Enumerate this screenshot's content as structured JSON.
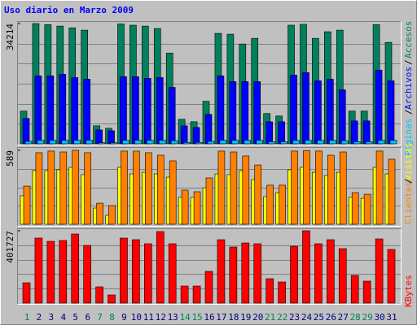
{
  "title": "Uso diario en Marzo 2009",
  "legend_separator": "/",
  "chart_data": [
    {
      "type": "bar",
      "ylim": [
        0,
        34214
      ],
      "yticks": [
        34214
      ],
      "series": [
        {
          "name": "Accesos",
          "color": "#00805c",
          "values": [
            9310,
            34214,
            33900,
            33500,
            33000,
            32350,
            5120,
            4420,
            34100,
            33750,
            33500,
            32800,
            25830,
            6980,
            6280,
            12100,
            31420,
            31190,
            28400,
            30020,
            8610,
            7910,
            33750,
            34000,
            30020,
            31890,
            32350,
            9310,
            9310,
            33900,
            28860
          ]
        },
        {
          "name": "Archivos",
          "color": "#0000ff",
          "values": [
            7215,
            19320,
            19320,
            19780,
            18850,
            18390,
            3960,
            3720,
            19090,
            19090,
            18620,
            18850,
            16060,
            5120,
            4650,
            8380,
            19320,
            17690,
            17690,
            17690,
            6280,
            6280,
            19550,
            20250,
            17920,
            18390,
            15360,
            6520,
            6520,
            20950,
            17920
          ]
        },
        {
          "name": "Páginas",
          "color": "#00c0ff",
          "values": [
            700,
            1000,
            1000,
            1000,
            1000,
            1000,
            300,
            300,
            1000,
            1000,
            1000,
            1000,
            900,
            400,
            400,
            700,
            1000,
            1000,
            1000,
            1000,
            600,
            600,
            1000,
            1000,
            1000,
            1000,
            900,
            600,
            600,
            1000,
            1000
          ]
        }
      ]
    },
    {
      "type": "bar",
      "ylim": [
        0,
        589
      ],
      "yticks": [
        589
      ],
      "series": [
        {
          "name": "Visitas",
          "color": "#ffff00",
          "values": [
            227,
            427,
            427,
            434,
            453,
            395,
            129,
            71,
            453,
            401,
            414,
            401,
            375,
            214,
            214,
            291,
            401,
            395,
            427,
            356,
            220,
            252,
            434,
            453,
            414,
            388,
            414,
            214,
            207,
            453,
            401
          ]
        },
        {
          "name": "Clientes",
          "color": "#ff8000",
          "values": [
            304,
            570,
            583,
            576,
            589,
            570,
            168,
            149,
            583,
            583,
            570,
            550,
            505,
            272,
            259,
            369,
            583,
            576,
            544,
            472,
            311,
            311,
            583,
            586,
            583,
            550,
            576,
            252,
            239,
            583,
            518
          ]
        }
      ]
    },
    {
      "type": "bar",
      "ylim": [
        0,
        401727
      ],
      "yticks": [
        401727
      ],
      "series": [
        {
          "name": "KBytes",
          "color": "#ff0000",
          "values": [
            112845,
            361100,
            343050,
            347560,
            383670,
            320480,
            90270,
            45140,
            361100,
            352080,
            329510,
            397210,
            329510,
            94790,
            94790,
            176040,
            352080,
            311450,
            334020,
            329510,
            135410,
            117360,
            315960,
            401727,
            329510,
            352080,
            302420,
            153470,
            121870,
            356590,
            297910
          ]
        }
      ],
      "categories": [
        "1",
        "2",
        "3",
        "4",
        "5",
        "6",
        "7",
        "8",
        "9",
        "10",
        "11",
        "12",
        "13",
        "14",
        "15",
        "16",
        "17",
        "18",
        "19",
        "20",
        "21",
        "22",
        "23",
        "24",
        "25",
        "26",
        "27",
        "28",
        "29",
        "30",
        "31"
      ],
      "label_colors": [
        "#00805c",
        "#000080",
        "#000080",
        "#000080",
        "#000080",
        "#000080",
        "#00805c",
        "#00805c",
        "#000080",
        "#000080",
        "#000080",
        "#000080",
        "#000080",
        "#00805c",
        "#00805c",
        "#000080",
        "#000080",
        "#000080",
        "#000080",
        "#000080",
        "#00805c",
        "#00805c",
        "#000080",
        "#000080",
        "#000080",
        "#000080",
        "#000080",
        "#00805c",
        "#00805c",
        "#000080",
        "#000080"
      ]
    }
  ]
}
